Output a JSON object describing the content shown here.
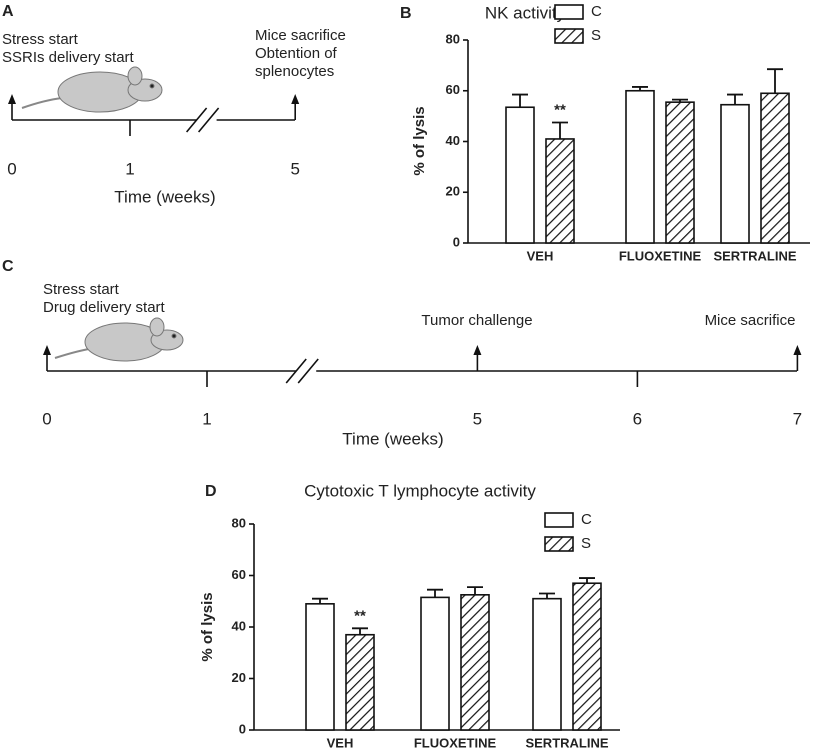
{
  "chart_data": [
    {
      "type": "timeline",
      "panel": "A",
      "xlabel": "Time (weeks)",
      "xticks": [
        0,
        1,
        5
      ],
      "break": [
        1,
        5
      ],
      "events": [
        {
          "x": 0,
          "labels": [
            "Stress start",
            "SSRIs delivery start"
          ]
        },
        {
          "x": 5,
          "labels": [
            "Mice sacrifice",
            "Obtention of",
            "splenocytes"
          ]
        }
      ]
    },
    {
      "type": "bar",
      "panel": "B",
      "title": "NK activity",
      "ylabel": "% of lysis",
      "categories": [
        "VEH",
        "FLUOXETINE",
        "SERTRALINE"
      ],
      "series": [
        {
          "name": "C",
          "color": "#ffffff",
          "values": [
            53.5,
            60,
            54.5
          ],
          "errors": [
            5,
            1.5,
            4
          ]
        },
        {
          "name": "S",
          "color": "#ffffff",
          "pattern": "hatch",
          "values": [
            41,
            55.5,
            59
          ],
          "errors": [
            6.5,
            1,
            9.5
          ]
        }
      ],
      "annotation": "**",
      "ylim": [
        0,
        80
      ],
      "yticks": [
        0,
        20,
        40,
        60,
        80
      ],
      "legend": "top-right"
    },
    {
      "type": "timeline",
      "panel": "C",
      "xlabel": "Time (weeks)",
      "xticks": [
        0,
        1,
        5,
        6,
        7
      ],
      "break": [
        1,
        5
      ],
      "events": [
        {
          "x": 0,
          "labels": [
            "Stress start",
            "Drug delivery start"
          ]
        },
        {
          "x": 5,
          "labels": [
            "Tumor challenge"
          ]
        },
        {
          "x": 7,
          "labels": [
            "Mice sacrifice"
          ]
        }
      ]
    },
    {
      "type": "bar",
      "panel": "D",
      "title": "Cytotoxic T lymphocyte activity",
      "ylabel": "% of lysis",
      "categories": [
        "VEH",
        "FLUOXETINE",
        "SERTRALINE"
      ],
      "series": [
        {
          "name": "C",
          "color": "#ffffff",
          "values": [
            49,
            51.5,
            51
          ],
          "errors": [
            2,
            3,
            2
          ]
        },
        {
          "name": "S",
          "color": "#ffffff",
          "pattern": "hatch",
          "values": [
            37,
            52.5,
            57
          ],
          "errors": [
            2.5,
            3,
            2
          ]
        }
      ],
      "annotation": "**",
      "ylim": [
        0,
        80
      ],
      "yticks": [
        0,
        20,
        40,
        60,
        80
      ],
      "legend": "top-right"
    }
  ]
}
